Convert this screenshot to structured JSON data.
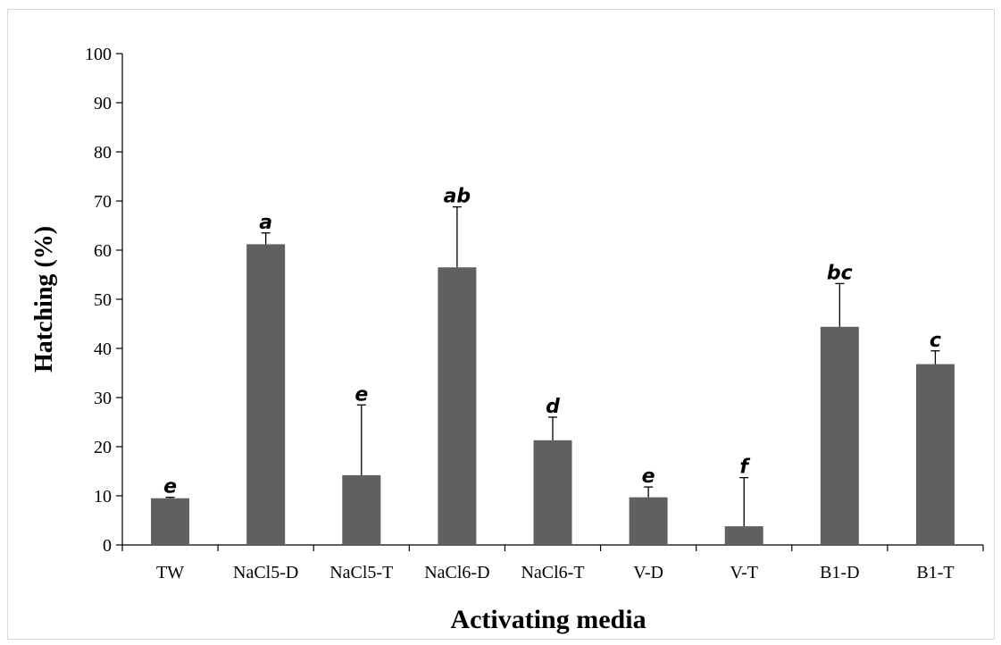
{
  "chart_data": {
    "type": "bar",
    "categories": [
      "TW",
      "NaCl5-D",
      "NaCl5-T",
      "NaCl6-D",
      "NaCl6-T",
      "V-D",
      "V-T",
      "B1-D",
      "B1-T"
    ],
    "values": [
      9.5,
      61.2,
      14.2,
      56.5,
      21.3,
      9.7,
      3.8,
      44.4,
      36.8
    ],
    "error_upper": [
      9.7,
      63.5,
      28.5,
      68.8,
      26.0,
      11.8,
      13.7,
      53.2,
      39.5
    ],
    "significance_letters": [
      "e",
      "a",
      "e",
      "ab",
      "d",
      "e",
      "f",
      "bc",
      "c"
    ],
    "xlabel": "Activating media",
    "ylabel": "Hatching (%)",
    "ylim": [
      0,
      100
    ],
    "yticks": [
      0,
      10,
      20,
      30,
      40,
      50,
      60,
      70,
      80,
      90,
      100
    ],
    "grid": false,
    "legend": "none",
    "bar_color": "#606060"
  }
}
